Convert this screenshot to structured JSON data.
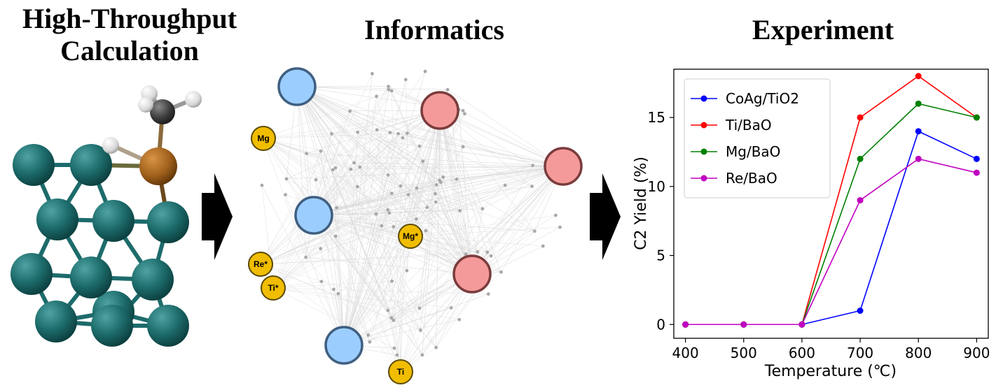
{
  "panels": {
    "calculation": {
      "title_line1": "High-Throughput",
      "title_line2": "Calculation"
    },
    "informatics": {
      "title": "Informatics",
      "element_nodes": [
        {
          "label": "Mg"
        },
        {
          "label": "Mg*"
        },
        {
          "label": "Re*"
        },
        {
          "label": "Ti*"
        },
        {
          "label": "Ti"
        }
      ]
    },
    "experiment": {
      "title": "Experiment"
    }
  },
  "colors": {
    "surface_atom": "#1d6b6b",
    "adsorbate_center": "#a0611c",
    "carbon": "#3d3d3d",
    "hydrogen": "#e0e0e0",
    "blue_node": "#9ccdff",
    "red_node": "#f59a9a",
    "element_node": "#f0bd00",
    "arrow": "#000000"
  },
  "chart_data": {
    "type": "line",
    "x": [
      400,
      500,
      600,
      700,
      800,
      900
    ],
    "xlabel": "Temperature (℃)",
    "ylabel": "C2 Yield (%)",
    "xlim": [
      380,
      920
    ],
    "ylim": [
      -1,
      18.5
    ],
    "xticks": [
      "400",
      "500",
      "600",
      "700",
      "800",
      "900"
    ],
    "yticks": [
      "0",
      "5",
      "10",
      "15"
    ],
    "legend_position": "top-left",
    "series": [
      {
        "name": "CoAg/TiO2",
        "color": "#0000ff",
        "values": [
          0,
          0,
          0,
          1,
          14,
          12
        ]
      },
      {
        "name": "Ti/BaO",
        "color": "#ff0000",
        "values": [
          0,
          0,
          0,
          15,
          18,
          15
        ]
      },
      {
        "name": "Mg/BaO",
        "color": "#008000",
        "values": [
          0,
          0,
          0,
          12,
          16,
          15
        ]
      },
      {
        "name": "Re/BaO",
        "color": "#c000c0",
        "values": [
          0,
          0,
          0,
          9,
          12,
          11
        ]
      }
    ]
  }
}
